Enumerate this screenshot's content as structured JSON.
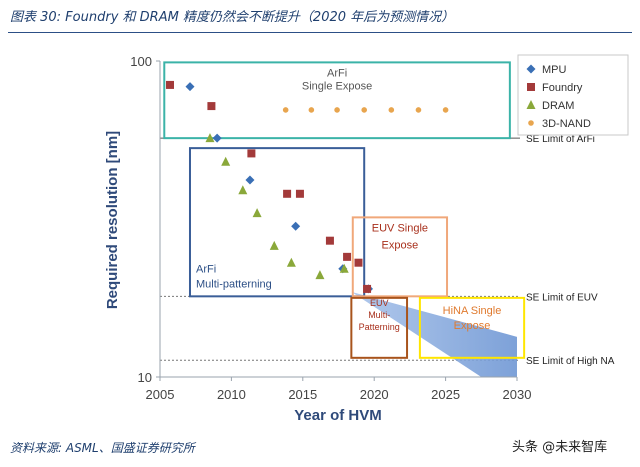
{
  "header": {
    "title": "图表 30:  Foundry 和 DRAM 精度仍然会不断提升（2020 年后为预测情况）"
  },
  "footer": {
    "source": "资料来源:  ASML、国盛证券研究所",
    "watermark": "头条 @未来智库"
  },
  "chart_data": {
    "type": "scatter",
    "title": "",
    "xlabel": "Year of HVM",
    "ylabel": "Required resolution [nm]",
    "xlim": [
      2005,
      2030
    ],
    "ylim": [
      10,
      100
    ],
    "yscale": "log",
    "x_ticks": [
      "2005",
      "2010",
      "2015",
      "2020",
      "2025",
      "2030"
    ],
    "y_ticks": [
      "100",
      "10"
    ],
    "colors": {
      "MPU": "#3a6fb5",
      "Foundry": "#a33a3a",
      "DRAM": "#8aa83a",
      "3D-NAND": "#e8a54e",
      "arfi_single": "#3bb3a8",
      "arfi_multi": "#3a5e98",
      "euv_single": "#f0a87a",
      "euv_multi": "#a8541c",
      "hina": "#ffe600",
      "ramp": "#9ab6e3"
    },
    "series": [
      {
        "name": "MPU",
        "marker": "diamond",
        "x": [
          2007.1,
          2009.0,
          2011.3,
          2014.5,
          2017.8,
          2019.6
        ],
        "y": [
          83,
          57,
          42,
          30,
          22,
          19
        ]
      },
      {
        "name": "Foundry",
        "marker": "square",
        "x": [
          2005.7,
          2008.6,
          2011.4,
          2013.9,
          2014.8,
          2016.9,
          2018.1,
          2018.9,
          2019.5
        ],
        "y": [
          84,
          72,
          51,
          38,
          38,
          27,
          24,
          23,
          19
        ]
      },
      {
        "name": "DRAM",
        "marker": "triangle",
        "x": [
          2008.5,
          2009.6,
          2010.8,
          2011.8,
          2013.0,
          2014.2,
          2016.2,
          2017.9
        ],
        "y": [
          57,
          48,
          39,
          33,
          26,
          23,
          21,
          22
        ]
      },
      {
        "name": "3D-NAND",
        "marker": "circle",
        "x": [
          2013.8,
          2015.6,
          2017.4,
          2019.3,
          2021.2,
          2023.1,
          2025.0
        ],
        "y": [
          70,
          70,
          70,
          70,
          70,
          70,
          70
        ]
      }
    ],
    "limits": [
      {
        "label": "SE Limit of ArFi",
        "value": 57,
        "style": "solid"
      },
      {
        "label": "SE Limit of EUV",
        "value": 18,
        "style": "dotted"
      },
      {
        "label": "SE Limit of High NA",
        "value": 11.3,
        "style": "dotted"
      }
    ],
    "regions": [
      {
        "label": [
          "ArFi",
          "Single Expose"
        ],
        "color_key": "arfi_single",
        "x_range": [
          2005.3,
          2029.5
        ],
        "y_range": [
          57,
          99
        ]
      },
      {
        "label": [
          "ArFi",
          "Multi-patterning"
        ],
        "color_key": "arfi_multi",
        "x_range": [
          2007.1,
          2019.3
        ],
        "y_range": [
          18,
          53
        ]
      },
      {
        "label": [
          "EUV Single",
          "Expose"
        ],
        "color_key": "euv_single",
        "x_range": [
          2018.5,
          2025.1
        ],
        "y_range": [
          18,
          32
        ]
      },
      {
        "label": [
          "EUV",
          "Multi-",
          "Patterning"
        ],
        "color_key": "euv_multi",
        "x_range": [
          2018.4,
          2022.3
        ],
        "y_range": [
          11.5,
          17.8
        ]
      },
      {
        "label": [
          "HiNA Single",
          "Expose"
        ],
        "color_key": "hina",
        "x_range": [
          2023.2,
          2030.5
        ],
        "y_range": [
          11.5,
          17.8
        ]
      }
    ],
    "legend": {
      "position": "top-right",
      "entries": [
        "MPU",
        "Foundry",
        "DRAM",
        "3D-NAND"
      ]
    }
  }
}
